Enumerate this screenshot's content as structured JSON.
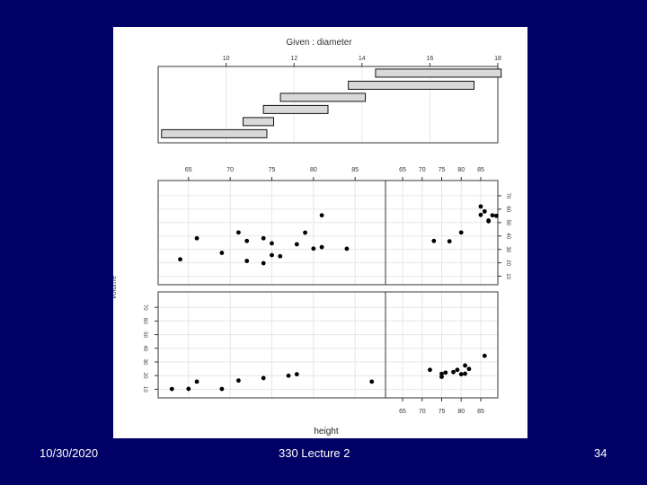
{
  "footer": {
    "date": "10/30/2020",
    "title": "330 Lecture 2",
    "page": "34"
  },
  "colors": {
    "background": "#000066",
    "figure": "#ffffff",
    "bar_fill": "#d9d9d9",
    "text": "#ffffff",
    "points": "#000000"
  },
  "chart_data": {
    "type": "scatter",
    "title": "Given : diameter",
    "xlabel": "height",
    "ylabel": "volume",
    "xlim": [
      62,
      88
    ],
    "ylim": [
      5,
      80
    ],
    "grid": true,
    "given": {
      "label": "Given : diameter",
      "ticks": [
        10,
        12,
        14,
        16,
        18
      ],
      "range": [
        8,
        18
      ],
      "intervals": [
        [
          8.1,
          11.2
        ],
        [
          10.5,
          11.4
        ],
        [
          11.1,
          13.0
        ],
        [
          11.6,
          14.1
        ],
        [
          13.6,
          17.3
        ],
        [
          14.4,
          18.1
        ]
      ]
    },
    "height_ticks": [
      65,
      70,
      75,
      80,
      85
    ],
    "volume_ticks": [
      10,
      20,
      30,
      40,
      50,
      60,
      70
    ],
    "panels": [
      {
        "name": "bottom-left",
        "points": [
          [
            63,
            10.2
          ],
          [
            65,
            10.3
          ],
          [
            66,
            15.6
          ],
          [
            69,
            10.2
          ],
          [
            71,
            16.4
          ],
          [
            74,
            18.2
          ],
          [
            77,
            19.9
          ],
          [
            78,
            21.0
          ],
          [
            87,
            15.6
          ]
        ]
      },
      {
        "name": "bottom-right",
        "points": [
          [
            72,
            24.2
          ],
          [
            75,
            21.3
          ],
          [
            75,
            19.1
          ],
          [
            76,
            22.2
          ],
          [
            78,
            22.6
          ],
          [
            79,
            24.2
          ],
          [
            80,
            21.0
          ],
          [
            81,
            21.4
          ],
          [
            82,
            24.9
          ],
          [
            81,
            27.4
          ],
          [
            86,
            34.5
          ]
        ]
      },
      {
        "name": "top-left",
        "points": [
          [
            64,
            22.6
          ],
          [
            72,
            21.4
          ],
          [
            74,
            19.7
          ],
          [
            75,
            25.7
          ],
          [
            76,
            24.9
          ],
          [
            69,
            27.4
          ],
          [
            81,
            31.7
          ],
          [
            80,
            30.6
          ],
          [
            75,
            34.5
          ],
          [
            74,
            38.3
          ],
          [
            72,
            36.3
          ],
          [
            66,
            38.3
          ],
          [
            71,
            42.6
          ],
          [
            78,
            33.8
          ],
          [
            84,
            30.5
          ],
          [
            79,
            42.5
          ],
          [
            81,
            55.4
          ]
        ]
      },
      {
        "name": "top-right",
        "points": [
          [
            73,
            36.3
          ],
          [
            77,
            36.0
          ],
          [
            80,
            42.6
          ],
          [
            85,
            55.7
          ],
          [
            86,
            58.3
          ],
          [
            87,
            51.5
          ],
          [
            87,
            51.0
          ],
          [
            88,
            55.4
          ],
          [
            89,
            55.0
          ],
          [
            85,
            62.0
          ]
        ]
      }
    ]
  }
}
